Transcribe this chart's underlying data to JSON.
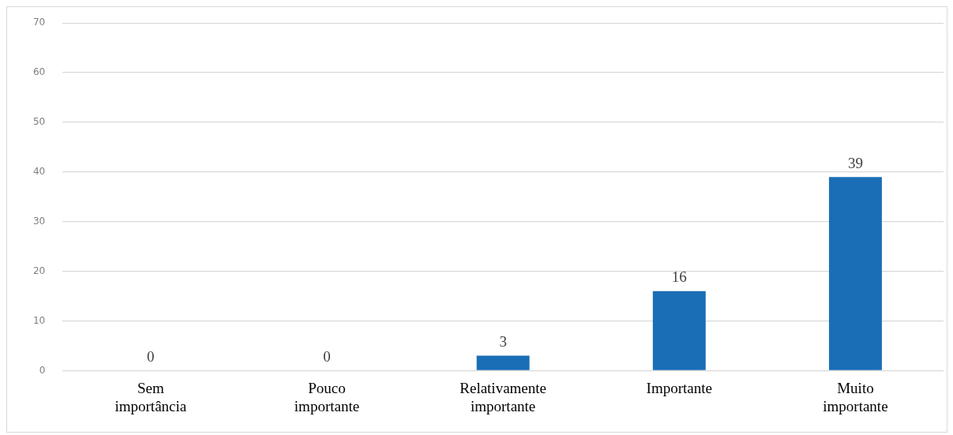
{
  "chart_data": {
    "type": "bar",
    "categories": [
      "Sem importância",
      "Pouco importante",
      "Relativamente importante",
      "Importante",
      "Muito importante"
    ],
    "values": [
      0,
      0,
      3,
      16,
      39
    ],
    "color": "#1a6eb6",
    "ylim": [
      0,
      70
    ],
    "yticks": [
      0,
      10,
      20,
      30,
      40,
      50,
      60,
      70
    ],
    "grid": "y",
    "data_labels": true
  }
}
